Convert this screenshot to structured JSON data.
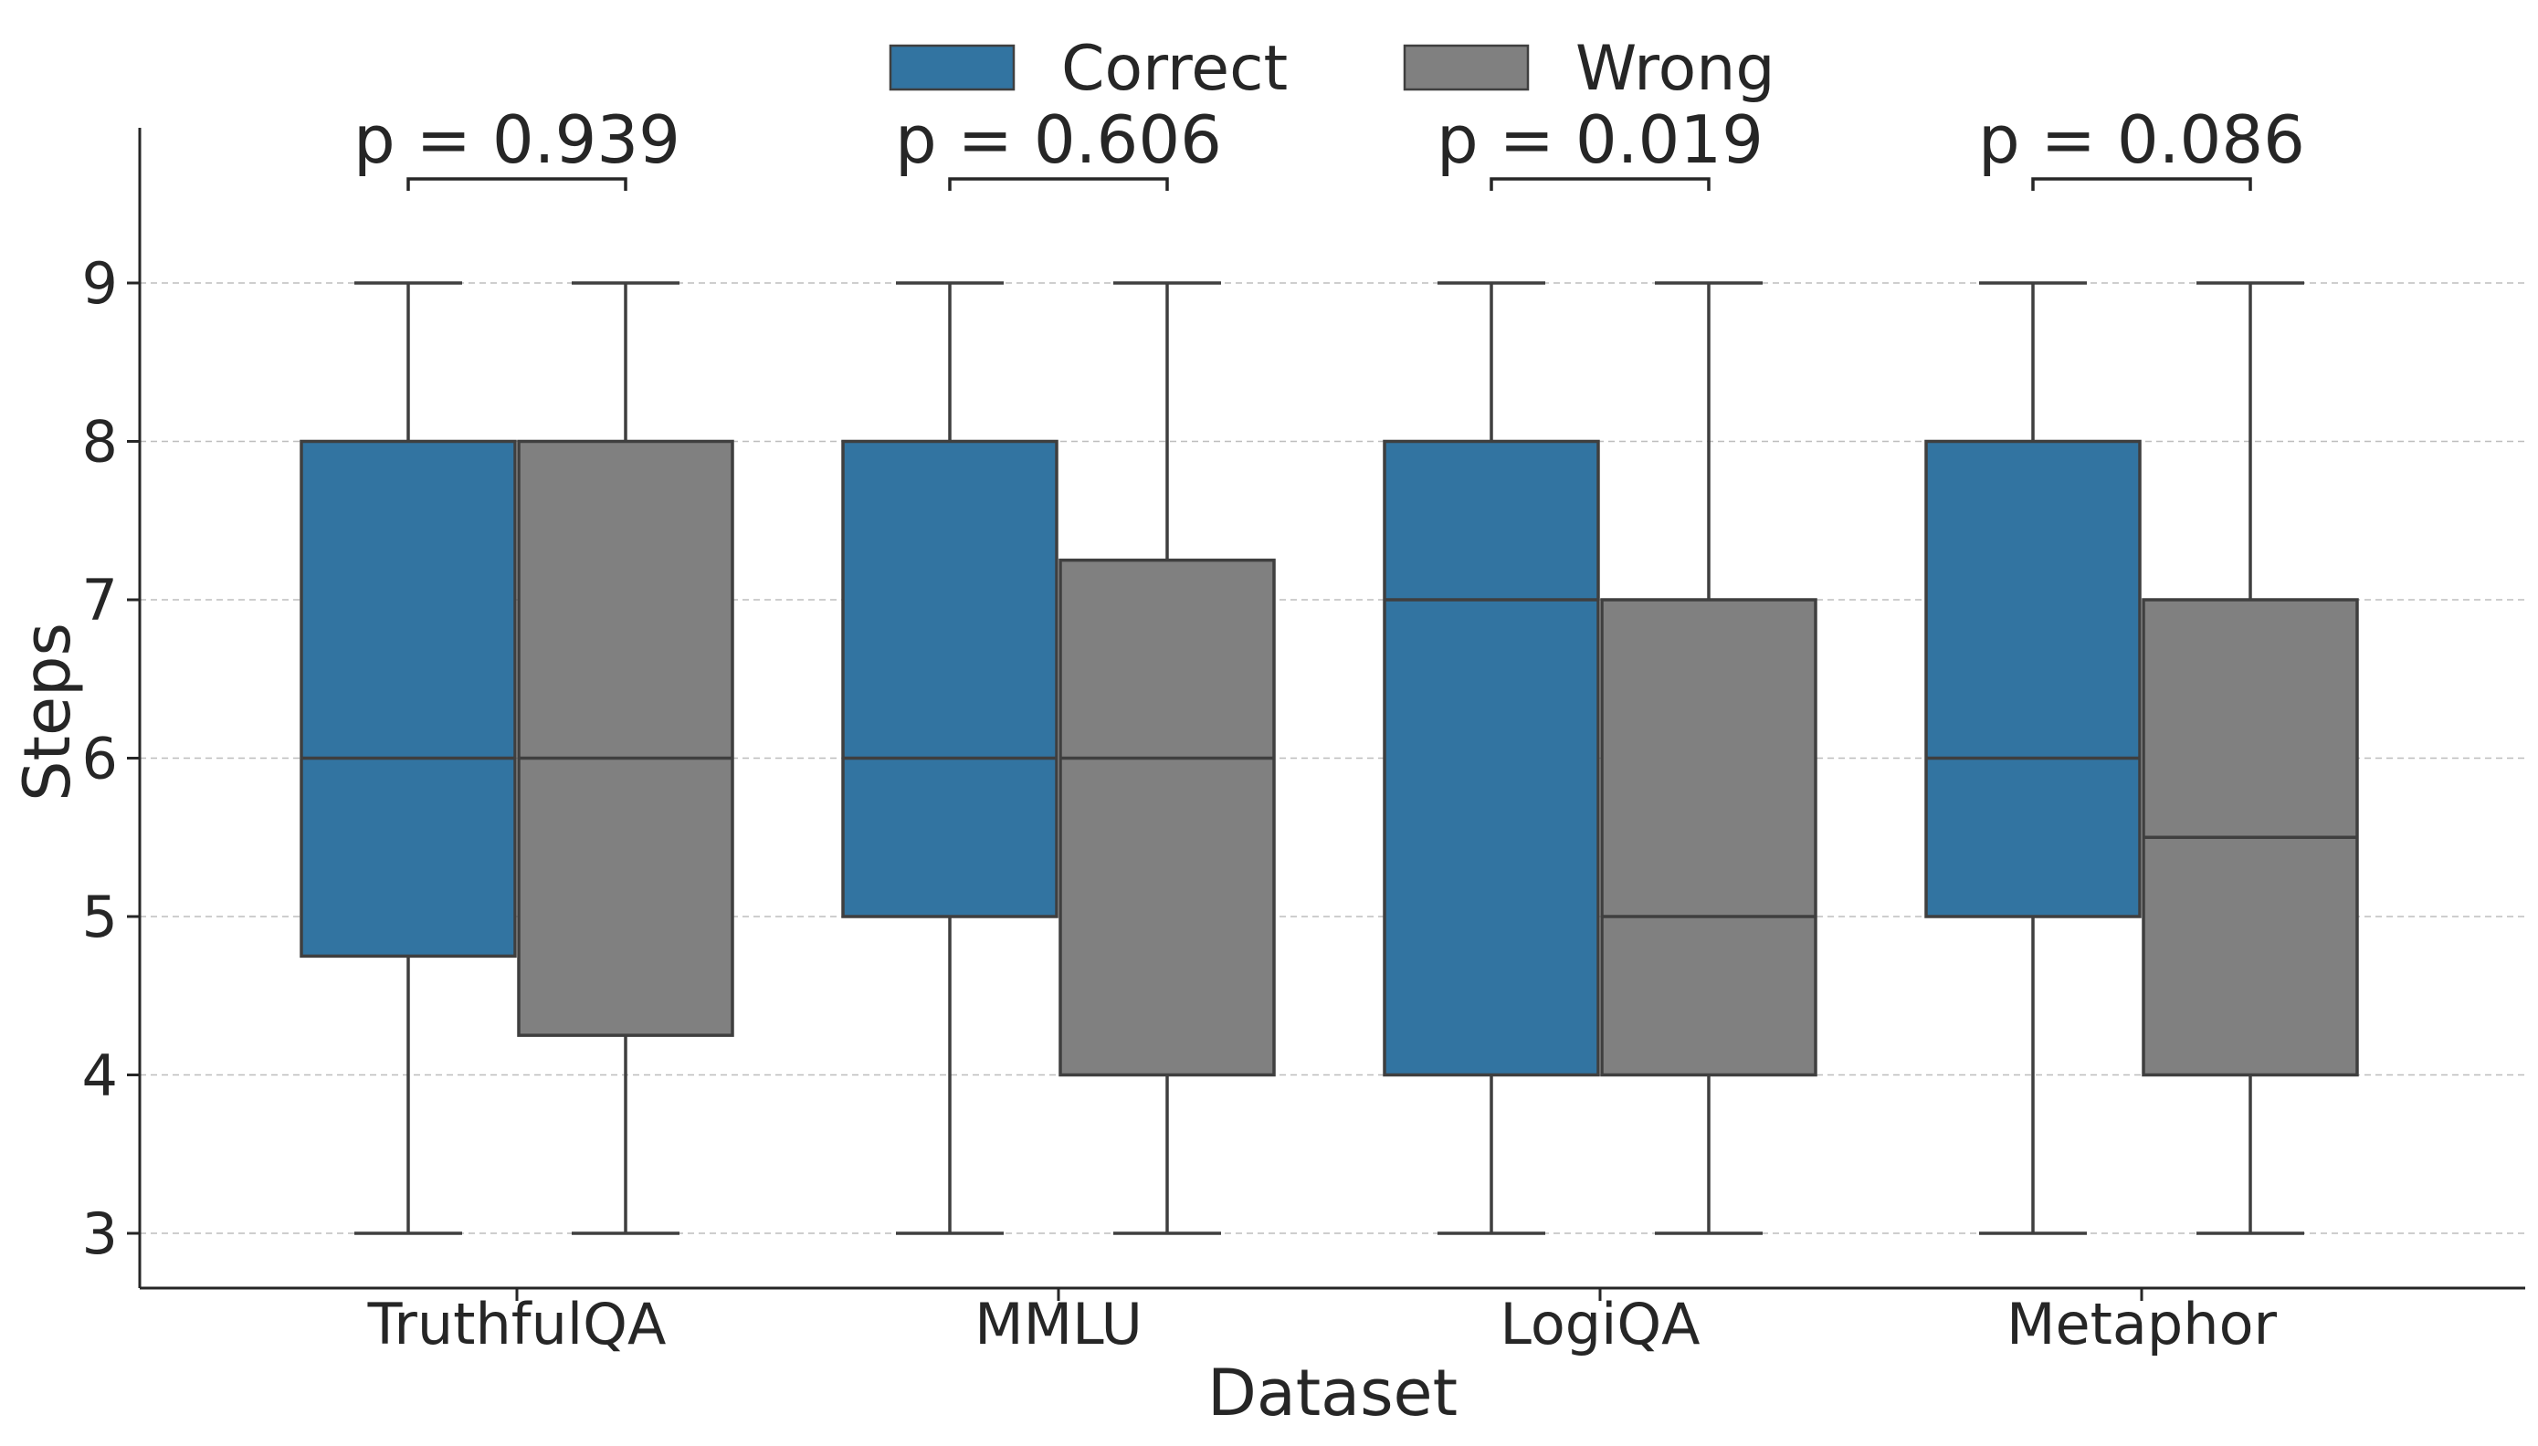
{
  "chart_data": {
    "type": "box",
    "title": "",
    "xlabel": "Dataset",
    "ylabel": "Steps",
    "ylim": [
      2.65,
      10.0
    ],
    "yticks": [
      3,
      4,
      5,
      6,
      7,
      8,
      9
    ],
    "grid": "horizontal dashed",
    "legend_position": "top-center",
    "categories": [
      "TruthfulQA",
      "MMLU",
      "LogiQA",
      "Metaphor"
    ],
    "series": [
      {
        "name": "Correct",
        "color": "#3274a1",
        "boxes": [
          {
            "whislo": 3,
            "q1": 4.75,
            "med": 6,
            "q3": 8,
            "whishi": 9
          },
          {
            "whislo": 3,
            "q1": 5,
            "med": 6,
            "q3": 8,
            "whishi": 9
          },
          {
            "whislo": 3,
            "q1": 4,
            "med": 7,
            "q3": 8,
            "whishi": 9
          },
          {
            "whislo": 3,
            "q1": 5,
            "med": 6,
            "q3": 8,
            "whishi": 9
          }
        ]
      },
      {
        "name": "Wrong",
        "color": "#808080",
        "boxes": [
          {
            "whislo": 3,
            "q1": 4.25,
            "med": 6,
            "q3": 8,
            "whishi": 9
          },
          {
            "whislo": 3,
            "q1": 4,
            "med": 6,
            "q3": 7.25,
            "whishi": 9
          },
          {
            "whislo": 3,
            "q1": 4,
            "med": 5,
            "q3": 7,
            "whishi": 9
          },
          {
            "whislo": 3,
            "q1": 4,
            "med": 5.5,
            "q3": 7,
            "whishi": 9
          }
        ]
      }
    ],
    "annotations": [
      "p = 0.939",
      "p = 0.606",
      "p = 0.019",
      "p = 0.086"
    ]
  }
}
